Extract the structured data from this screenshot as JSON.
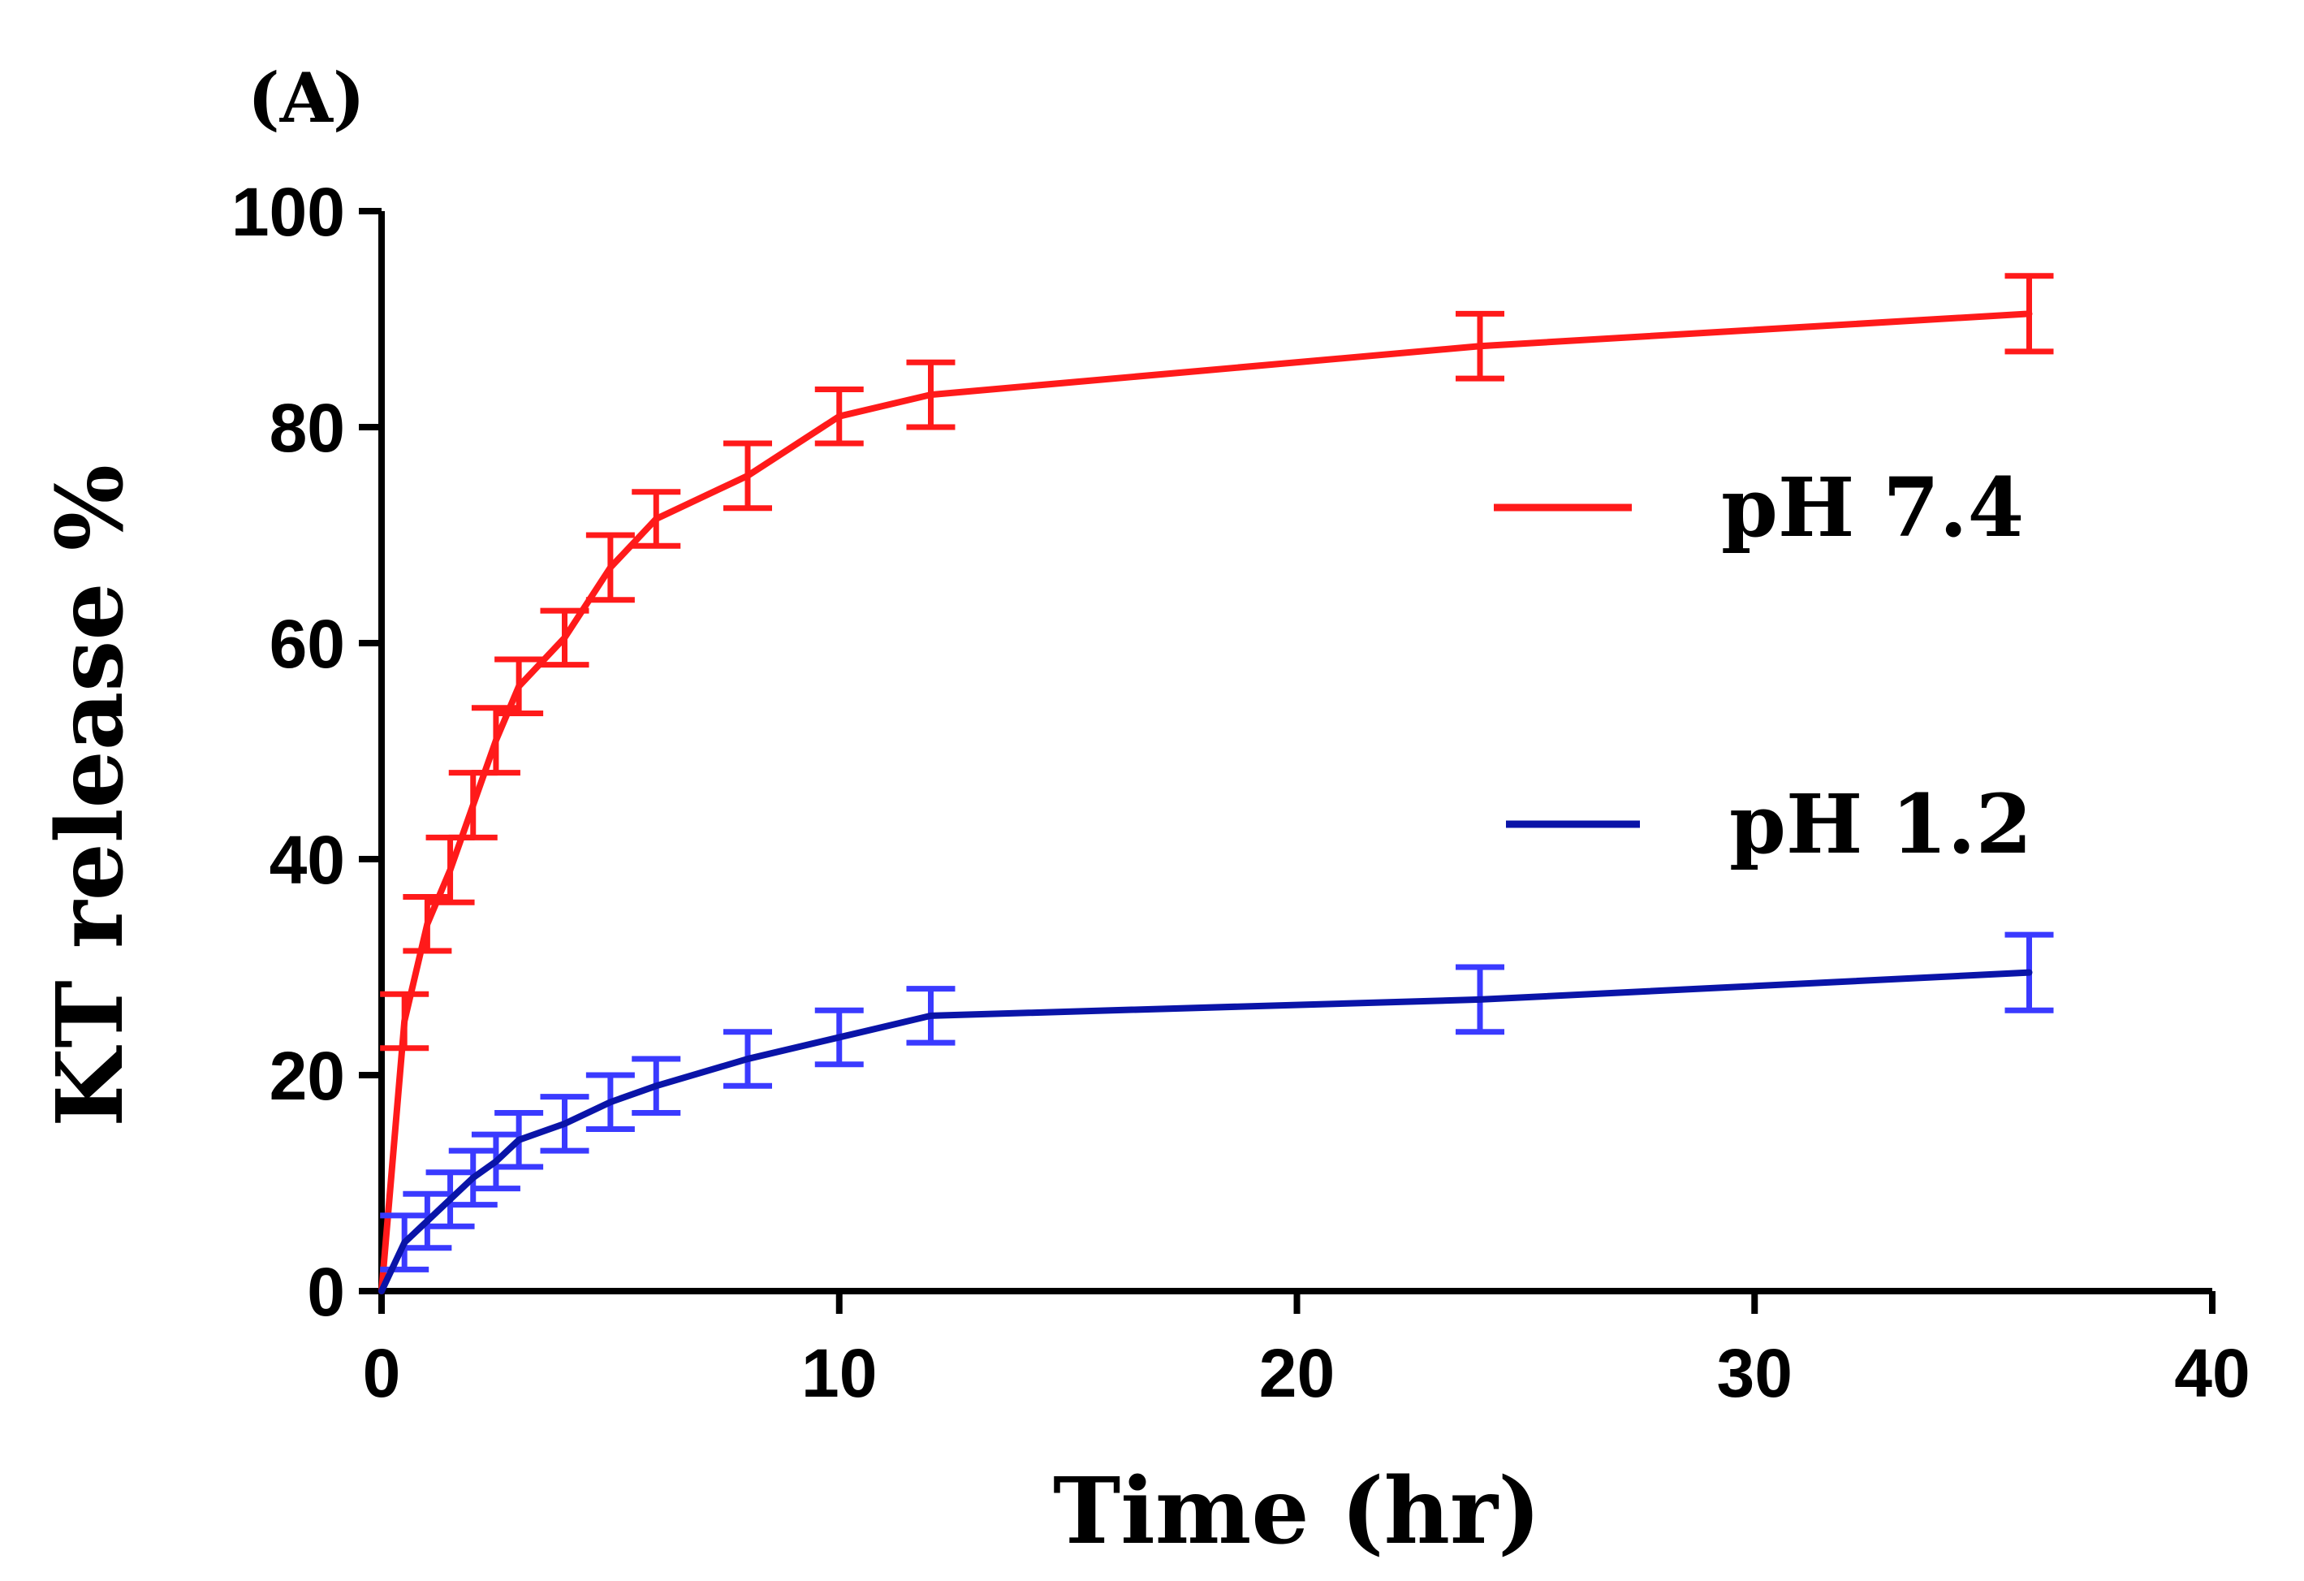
{
  "panel_label": "(A)",
  "chart_data": {
    "type": "line",
    "title": "",
    "xlabel": "Time (hr)",
    "ylabel": "KT release %",
    "xlim": [
      0,
      40
    ],
    "ylim": [
      0,
      100
    ],
    "xticks": [
      0,
      10,
      20,
      30,
      40
    ],
    "yticks": [
      0,
      20,
      40,
      60,
      80,
      100
    ],
    "grid": false,
    "legend_position": "right",
    "series": [
      {
        "name": "pH 7.4",
        "color": "#ff1a1a",
        "x": [
          0,
          0.5,
          1,
          1.5,
          2,
          2.5,
          3,
          4,
          5,
          6,
          8,
          10,
          12,
          24,
          36
        ],
        "y": [
          0,
          25,
          34,
          39,
          45,
          51,
          56,
          60.5,
          67,
          71.5,
          75.5,
          81,
          83,
          87.5,
          90.5
        ],
        "error": [
          0,
          2.5,
          2.5,
          3,
          3,
          3,
          2.5,
          2.5,
          3,
          2.5,
          3,
          2.5,
          3,
          3,
          3.5
        ]
      },
      {
        "name": "pH 1.2",
        "color": "#0a14a8",
        "error_color": "#3a3aff",
        "x": [
          0,
          0.5,
          1,
          1.5,
          2,
          2.5,
          3,
          4,
          5,
          6,
          8,
          10,
          12,
          24,
          36
        ],
        "y": [
          0,
          4.5,
          6.5,
          8.5,
          10.5,
          12,
          14,
          15.5,
          17.5,
          19,
          21.5,
          23.5,
          25.5,
          27,
          29.5
        ],
        "error": [
          0,
          2.5,
          2.5,
          2.5,
          2.5,
          2.5,
          2.5,
          2.5,
          2.5,
          2.5,
          2.5,
          2.5,
          2.5,
          3,
          3.5
        ]
      }
    ]
  }
}
